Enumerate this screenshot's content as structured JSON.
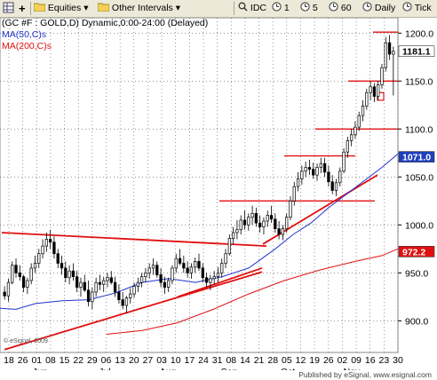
{
  "toolbar": {
    "items": [
      {
        "label": "",
        "icon": "grid-icon"
      },
      {
        "label": "",
        "icon": "plus-icon"
      },
      {
        "label": "Equities",
        "icon": "folder-icon"
      },
      {
        "label": "Other Intervals",
        "icon": "folder-icon"
      },
      {
        "label": "IDC",
        "icon": "magnifier-icon"
      },
      {
        "label": "1",
        "icon": "clock-icon"
      },
      {
        "label": "5",
        "icon": "clock-icon"
      },
      {
        "label": "60",
        "icon": "clock-icon"
      },
      {
        "label": "Daily",
        "icon": "clock-icon"
      },
      {
        "label": "Tick",
        "icon": "clock-icon"
      }
    ]
  },
  "header": {
    "symbol": "(GC #F : GOLD,D) Dynamic,0:00-24:00 (Delayed)",
    "ma50": "MA(50,C)s",
    "ma200": "MA(200,C)s"
  },
  "footer": {
    "text": "Published by eSignal, www.esignal.com"
  },
  "watermark": "© eSignal, 2009",
  "colors": {
    "ma50": "#2233cc",
    "ma200": "#e01010",
    "trend": "#e01010",
    "candle": "#000000",
    "price_badge": "#ffffff",
    "ma50_badge": "#1f3fbf",
    "ma200_badge": "#e01010"
  },
  "chart_data": {
    "type": "candlestick",
    "x_ticks": [
      "18",
      "26",
      "01",
      "08",
      "15",
      "22",
      "29",
      "06",
      "13",
      "20",
      "27",
      "03",
      "10",
      "17",
      "24",
      "31",
      "08",
      "14",
      "21",
      "28",
      "05",
      "12",
      "19",
      "26",
      "02",
      "09",
      "16",
      "23",
      "30"
    ],
    "month_labels": [
      "Jun",
      "Jul",
      "Aug",
      "Sep",
      "Oct",
      "Nov"
    ],
    "y_ticks": [
      900.0,
      950.0,
      1000.0,
      1050.0,
      1100.0,
      1150.0,
      1200.0
    ],
    "ylim": [
      867,
      1216
    ],
    "last_price_label": "1181.1",
    "ma50_label": "1071.0",
    "ma200_label": "972.2",
    "candles": [
      [
        930,
        936,
        922,
        926
      ],
      [
        926,
        944,
        920,
        940
      ],
      [
        940,
        962,
        938,
        958
      ],
      [
        958,
        965,
        945,
        950
      ],
      [
        950,
        958,
        942,
        946
      ],
      [
        946,
        948,
        930,
        935
      ],
      [
        935,
        945,
        928,
        942
      ],
      [
        942,
        960,
        938,
        955
      ],
      [
        955,
        968,
        950,
        960
      ],
      [
        960,
        975,
        955,
        970
      ],
      [
        970,
        985,
        965,
        978
      ],
      [
        978,
        992,
        972,
        985
      ],
      [
        985,
        995,
        975,
        982
      ],
      [
        982,
        988,
        965,
        970
      ],
      [
        970,
        975,
        955,
        960
      ],
      [
        960,
        968,
        948,
        955
      ],
      [
        955,
        962,
        940,
        945
      ],
      [
        945,
        958,
        938,
        952
      ],
      [
        952,
        960,
        942,
        946
      ],
      [
        946,
        952,
        930,
        935
      ],
      [
        935,
        945,
        925,
        940
      ],
      [
        940,
        948,
        930,
        932
      ],
      [
        932,
        942,
        915,
        920
      ],
      [
        920,
        935,
        912,
        930
      ],
      [
        930,
        945,
        925,
        940
      ],
      [
        940,
        948,
        932,
        938
      ],
      [
        938,
        946,
        930,
        942
      ],
      [
        942,
        950,
        935,
        945
      ],
      [
        945,
        952,
        938,
        940
      ],
      [
        940,
        946,
        925,
        930
      ],
      [
        930,
        938,
        918,
        922
      ],
      [
        922,
        930,
        912,
        916
      ],
      [
        916,
        926,
        908,
        924
      ],
      [
        924,
        934,
        918,
        928
      ],
      [
        928,
        940,
        924,
        936
      ],
      [
        936,
        945,
        930,
        940
      ],
      [
        940,
        950,
        935,
        946
      ],
      [
        946,
        955,
        940,
        950
      ],
      [
        950,
        960,
        944,
        955
      ],
      [
        955,
        965,
        948,
        958
      ],
      [
        958,
        962,
        945,
        948
      ],
      [
        948,
        955,
        935,
        940
      ],
      [
        940,
        946,
        928,
        935
      ],
      [
        935,
        945,
        930,
        942
      ],
      [
        942,
        958,
        938,
        955
      ],
      [
        955,
        970,
        950,
        965
      ],
      [
        965,
        975,
        958,
        960
      ],
      [
        960,
        968,
        950,
        955
      ],
      [
        955,
        962,
        945,
        950
      ],
      [
        950,
        960,
        944,
        956
      ],
      [
        956,
        966,
        950,
        962
      ],
      [
        962,
        970,
        952,
        955
      ],
      [
        955,
        960,
        940,
        945
      ],
      [
        945,
        950,
        935,
        940
      ],
      [
        940,
        948,
        932,
        944
      ],
      [
        944,
        952,
        938,
        946
      ],
      [
        946,
        956,
        940,
        950
      ],
      [
        950,
        965,
        945,
        960
      ],
      [
        960,
        975,
        955,
        970
      ],
      [
        970,
        990,
        968,
        986
      ],
      [
        986,
        998,
        980,
        992
      ],
      [
        992,
        1005,
        985,
        995
      ],
      [
        995,
        1010,
        990,
        1005
      ],
      [
        1005,
        1015,
        995,
        1000
      ],
      [
        1000,
        1012,
        994,
        1008
      ],
      [
        1008,
        1020,
        1000,
        1012
      ],
      [
        1012,
        1018,
        998,
        1002
      ],
      [
        1002,
        1010,
        992,
        998
      ],
      [
        998,
        1008,
        990,
        1004
      ],
      [
        1004,
        1015,
        998,
        1010
      ],
      [
        1010,
        1020,
        1002,
        1006
      ],
      [
        1006,
        1012,
        992,
        996
      ],
      [
        996,
        1004,
        985,
        990
      ],
      [
        990,
        1000,
        984,
        996
      ],
      [
        996,
        1012,
        992,
        1008
      ],
      [
        1008,
        1030,
        1005,
        1025
      ],
      [
        1025,
        1045,
        1020,
        1040
      ],
      [
        1040,
        1055,
        1035,
        1048
      ],
      [
        1048,
        1062,
        1042,
        1056
      ],
      [
        1056,
        1066,
        1050,
        1060
      ],
      [
        1060,
        1068,
        1052,
        1058
      ],
      [
        1058,
        1065,
        1048,
        1052
      ],
      [
        1052,
        1064,
        1046,
        1060
      ],
      [
        1060,
        1070,
        1054,
        1064
      ],
      [
        1064,
        1070,
        1050,
        1055
      ],
      [
        1055,
        1062,
        1040,
        1045
      ],
      [
        1045,
        1052,
        1032,
        1036
      ],
      [
        1036,
        1048,
        1030,
        1044
      ],
      [
        1044,
        1060,
        1040,
        1056
      ],
      [
        1056,
        1080,
        1054,
        1076
      ],
      [
        1076,
        1092,
        1070,
        1088
      ],
      [
        1088,
        1100,
        1082,
        1094
      ],
      [
        1094,
        1108,
        1090,
        1102
      ],
      [
        1102,
        1118,
        1098,
        1114
      ],
      [
        1114,
        1130,
        1108,
        1124
      ],
      [
        1124,
        1142,
        1120,
        1138
      ],
      [
        1138,
        1150,
        1130,
        1144
      ],
      [
        1144,
        1148,
        1128,
        1134
      ],
      [
        1134,
        1150,
        1130,
        1146
      ],
      [
        1146,
        1168,
        1142,
        1164
      ],
      [
        1164,
        1196,
        1160,
        1190
      ],
      [
        1190,
        1198,
        1172,
        1178
      ],
      [
        1178,
        1186,
        1135,
        1181
      ]
    ],
    "ma50": [
      [
        0,
        913
      ],
      [
        18,
        912
      ],
      [
        40,
        918
      ],
      [
        70,
        921
      ],
      [
        100,
        922
      ],
      [
        130,
        929
      ],
      [
        160,
        940
      ],
      [
        190,
        944
      ],
      [
        220,
        940
      ],
      [
        250,
        946
      ],
      [
        280,
        955
      ],
      [
        310,
        975
      ],
      [
        330,
        990
      ],
      [
        350,
        1002
      ],
      [
        370,
        1018
      ],
      [
        390,
        1032
      ],
      [
        410,
        1046
      ],
      [
        430,
        1060
      ],
      [
        448,
        1074
      ]
    ],
    "ma200": [
      [
        120,
        886
      ],
      [
        160,
        890
      ],
      [
        200,
        898
      ],
      [
        240,
        912
      ],
      [
        280,
        928
      ],
      [
        320,
        942
      ],
      [
        360,
        953
      ],
      [
        400,
        962
      ],
      [
        430,
        968
      ],
      [
        448,
        975
      ]
    ],
    "trendlines": [
      {
        "x1": 2,
        "y1": 992,
        "x2": 300,
        "y2": 978
      },
      {
        "x1": 5,
        "y1": 870,
        "x2": 295,
        "y2": 951
      },
      {
        "x1": 200,
        "y1": 925,
        "x2": 295,
        "y2": 955
      },
      {
        "x1": 296,
        "y1": 980,
        "x2": 425,
        "y2": 1052
      }
    ],
    "levels": [
      {
        "x1": 247,
        "x2": 422,
        "y": 1025
      },
      {
        "x1": 320,
        "x2": 400,
        "y": 1072
      },
      {
        "x1": 355,
        "x2": 448,
        "y": 1100
      },
      {
        "x1": 392,
        "x2": 448,
        "y": 1150
      },
      {
        "x1": 420,
        "x2": 448,
        "y": 1201
      }
    ],
    "marker": {
      "x": 428,
      "y1": 1130,
      "y2": 1138
    }
  }
}
